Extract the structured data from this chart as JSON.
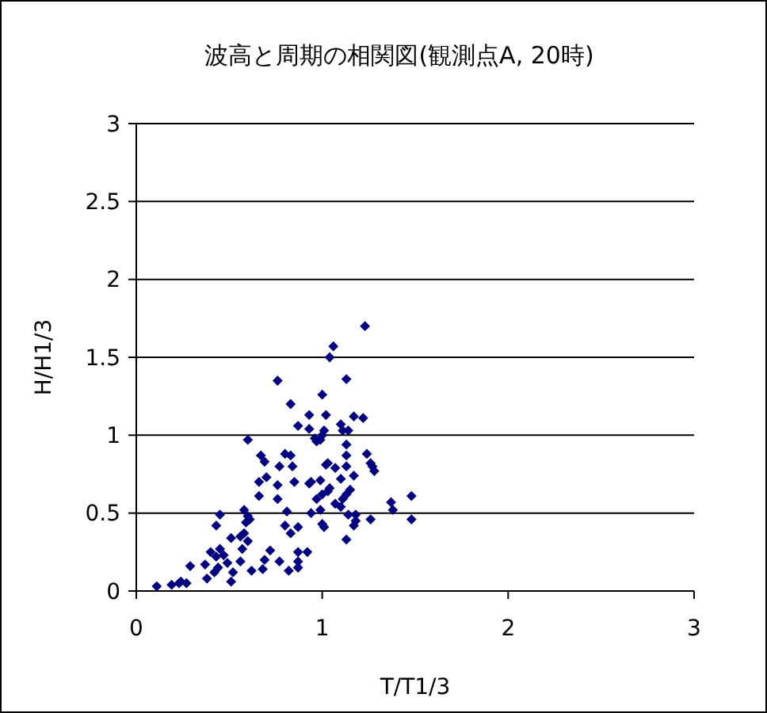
{
  "chart_data": {
    "type": "scatter",
    "title": "波高と周期の相関図(観測点A, 20時)",
    "xlabel": "T/T1/3",
    "ylabel": "H/H1/3",
    "xlim": [
      0,
      3
    ],
    "xticks": [
      0,
      1,
      2,
      3
    ],
    "ylim": [
      0,
      3
    ],
    "yticks": [
      0,
      0.5,
      1,
      1.5,
      2,
      2.5,
      3
    ],
    "grid": "y",
    "marker": "diamond",
    "series": [
      {
        "color": "#000080",
        "x": [
          0.11,
          0.19,
          0.23,
          0.27,
          0.24,
          0.29,
          0.38,
          0.37,
          0.4,
          0.43,
          0.44,
          0.45,
          0.47,
          0.49,
          0.42,
          0.51,
          0.43,
          0.45,
          0.51,
          0.52,
          0.56,
          0.57,
          0.58,
          0.6,
          0.56,
          0.58,
          0.6,
          0.61,
          0.59,
          0.62,
          0.68,
          0.69,
          0.72,
          0.77,
          0.8,
          0.83,
          0.81,
          0.66,
          0.66,
          0.7,
          0.76,
          0.76,
          0.77,
          0.8,
          0.83,
          0.84,
          0.67,
          0.69,
          0.6,
          0.76,
          0.83,
          0.82,
          0.85,
          0.93,
          0.94,
          0.99,
          0.97,
          1.0,
          1.03,
          1.04,
          0.99,
          0.94,
          0.87,
          1.0,
          1.01,
          1.13,
          1.17,
          1.18,
          1.14,
          1.18,
          1.26,
          1.1,
          1.07,
          1.11,
          1.13,
          1.15,
          1.1,
          1.13,
          1.17,
          1.03,
          1.02,
          1.07,
          1.13,
          1.13,
          1.24,
          1.26,
          1.27,
          1.28,
          1.37,
          1.38,
          1.48,
          1.48,
          0.96,
          0.99,
          0.97,
          1.0,
          0.87,
          0.93,
          0.93,
          1.02,
          1.01,
          1.1,
          1.11,
          1.14,
          1.17,
          1.22,
          1.0,
          1.13,
          1.04,
          1.06,
          1.23,
          0.87,
          0.92,
          0.87,
          0.87
        ],
        "values": [
          0.03,
          0.04,
          0.05,
          0.05,
          0.06,
          0.16,
          0.08,
          0.17,
          0.25,
          0.22,
          0.15,
          0.27,
          0.23,
          0.18,
          0.12,
          0.34,
          0.42,
          0.49,
          0.06,
          0.12,
          0.19,
          0.27,
          0.37,
          0.32,
          0.35,
          0.52,
          0.48,
          0.46,
          0.44,
          0.13,
          0.14,
          0.2,
          0.26,
          0.19,
          0.42,
          0.37,
          0.51,
          0.61,
          0.7,
          0.73,
          0.68,
          0.59,
          0.8,
          0.88,
          0.87,
          0.8,
          0.87,
          0.83,
          0.97,
          1.35,
          1.2,
          0.13,
          0.7,
          0.69,
          0.7,
          0.71,
          0.59,
          0.62,
          0.64,
          0.66,
          0.52,
          0.5,
          0.41,
          0.43,
          0.41,
          0.33,
          0.42,
          0.45,
          0.49,
          0.49,
          0.46,
          0.54,
          0.56,
          0.59,
          0.62,
          0.65,
          0.72,
          0.8,
          0.74,
          0.82,
          0.81,
          0.79,
          0.87,
          0.94,
          0.88,
          0.82,
          0.8,
          0.77,
          0.57,
          0.52,
          0.61,
          0.46,
          0.98,
          0.97,
          0.96,
          1.0,
          1.06,
          1.13,
          1.04,
          1.13,
          1.03,
          1.07,
          1.03,
          1.03,
          1.12,
          1.11,
          1.26,
          1.36,
          1.5,
          1.57,
          1.7,
          0.25,
          0.25,
          0.19,
          0.15
        ]
      }
    ]
  }
}
